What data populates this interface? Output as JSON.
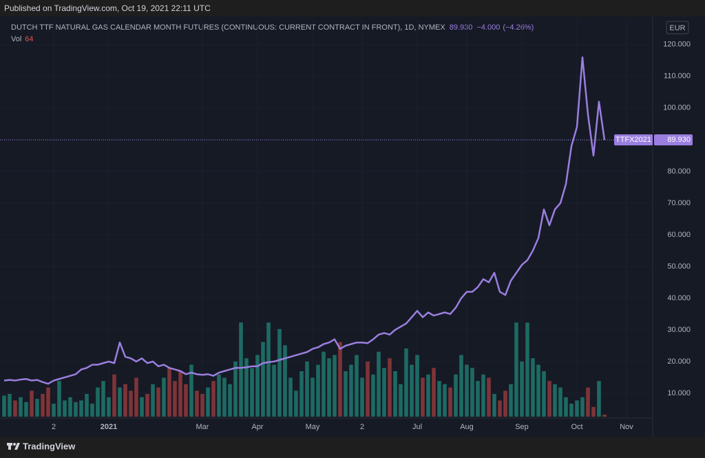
{
  "header": {
    "published": "Published on TradingView.com, Oct 19, 2021 22:11 UTC"
  },
  "footer": {
    "brand": "TradingView"
  },
  "chart_data": {
    "type": "line",
    "title": "DUTCH TTF NATURAL GAS CALENDAR MONTH FUTURES (CONTINUOUS: CURRENT CONTRACT IN FRONT), 1D, NYMEX",
    "quote": {
      "last": 89.93,
      "last_label": "89.930",
      "change": "−4.000",
      "change_pct": "(−4.26%)"
    },
    "volume_legend": "Vol",
    "currency": "EUR",
    "symbol_tag": "TTFX2021",
    "color": "#9b7fe0",
    "up_color": "#1d6a63",
    "down_color": "#7e3438",
    "grid": true,
    "ylim": [
      2.6,
      128
    ],
    "yticks": [
      {
        "value": 10,
        "label": "10.000"
      },
      {
        "value": 20,
        "label": "20.000"
      },
      {
        "value": 30,
        "label": "30.000"
      },
      {
        "value": 40,
        "label": "40.000"
      },
      {
        "value": 50,
        "label": "50.000"
      },
      {
        "value": 60,
        "label": "60.000"
      },
      {
        "value": 70,
        "label": "70.000"
      },
      {
        "value": 80,
        "label": "80.000"
      },
      {
        "value": 90,
        "label": "90.000"
      },
      {
        "value": 100,
        "label": "100.000"
      },
      {
        "value": 110,
        "label": "110.000"
      },
      {
        "value": 120,
        "label": "120.000"
      }
    ],
    "volume_lim": [
      0,
      3500
    ],
    "categories": [
      null,
      null,
      null,
      null,
      null,
      null,
      null,
      null,
      null,
      "2",
      null,
      null,
      null,
      null,
      null,
      null,
      null,
      null,
      null,
      "2021",
      null,
      null,
      null,
      null,
      null,
      null,
      null,
      null,
      null,
      null,
      null,
      null,
      null,
      null,
      null,
      null,
      "Mar",
      null,
      null,
      null,
      null,
      null,
      null,
      null,
      null,
      null,
      "Apr",
      null,
      null,
      null,
      null,
      null,
      null,
      null,
      null,
      null,
      "May",
      null,
      null,
      null,
      null,
      null,
      null,
      null,
      null,
      "2",
      null,
      null,
      null,
      null,
      null,
      null,
      null,
      null,
      null,
      "Jul",
      null,
      null,
      null,
      null,
      null,
      null,
      null,
      null,
      "Aug",
      null,
      null,
      null,
      null,
      null,
      null,
      null,
      null,
      null,
      "Sep",
      null,
      null,
      null,
      null,
      null,
      null,
      null,
      null,
      null,
      "Oct",
      null,
      null,
      null,
      null,
      null,
      null,
      null,
      null,
      "Nov"
    ],
    "values": [
      14,
      14.2,
      14,
      14.3,
      14.5,
      14,
      14.2,
      13.5,
      13,
      14,
      14.5,
      15,
      15.5,
      16,
      17.5,
      18,
      19,
      19,
      19.5,
      20,
      19.5,
      26,
      21.5,
      21,
      20,
      21,
      19.5,
      20,
      18.5,
      19,
      18,
      17.5,
      17,
      16,
      16.5,
      16,
      15.8,
      16,
      15.5,
      16.5,
      17,
      17.5,
      18,
      18,
      18.2,
      18.5,
      18.5,
      19.5,
      19.8,
      20,
      20.5,
      21,
      21.5,
      22,
      22.5,
      23,
      24,
      24.5,
      25.5,
      26,
      27,
      24,
      25,
      25.5,
      26,
      26,
      25.8,
      27,
      28.5,
      29,
      28.5,
      30,
      31,
      32,
      34,
      36,
      34,
      35.5,
      34.5,
      35,
      35.5,
      35,
      37,
      40,
      42,
      42,
      43.5,
      46,
      45,
      48,
      42,
      41,
      45.5,
      48,
      50.5,
      52,
      55,
      59,
      68,
      63,
      68,
      70,
      76,
      88,
      94,
      116,
      98,
      85,
      102,
      89.93,
      null,
      null,
      null,
      null
    ],
    "volume": [
      650,
      700,
      500,
      600,
      450,
      800,
      550,
      700,
      900,
      400,
      1100,
      500,
      600,
      450,
      500,
      700,
      400,
      900,
      1100,
      600,
      1300,
      900,
      1000,
      800,
      1200,
      600,
      700,
      1000,
      900,
      1200,
      1500,
      1100,
      1400,
      1000,
      1600,
      800,
      700,
      900,
      1100,
      1300,
      1200,
      1000,
      1700,
      2900,
      1800,
      1500,
      1900,
      2300,
      2900,
      1600,
      2700,
      2200,
      1200,
      800,
      1400,
      1700,
      1200,
      1600,
      2000,
      1800,
      1900,
      2300,
      1400,
      1600,
      1900,
      1200,
      1700,
      1300,
      2000,
      1500,
      1800,
      1400,
      1000,
      2100,
      1600,
      1900,
      1200,
      1300,
      1500,
      1100,
      1000,
      900,
      1300,
      1900,
      1600,
      1500,
      1100,
      1300,
      1200,
      700,
      500,
      800,
      1000,
      2900,
      1700,
      2900,
      1800,
      1600,
      1400,
      1100,
      1000,
      900,
      600,
      400,
      500,
      600,
      900,
      300,
      1100,
      64,
      null,
      null,
      null,
      null
    ]
  }
}
